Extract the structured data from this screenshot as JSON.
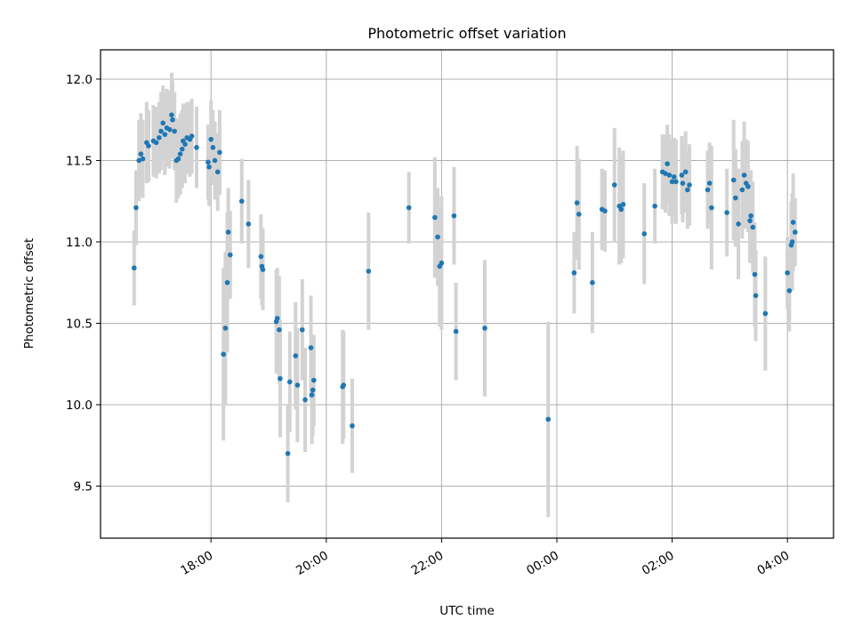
{
  "chart_data": {
    "type": "scatter",
    "title": "Photometric offset variation",
    "xlabel": "UTC time",
    "ylabel": "Photometric offset",
    "x_is_time": true,
    "xlim": [
      "16:05",
      "04:48"
    ],
    "ylim": [
      9.18,
      12.18
    ],
    "x_ticks": [
      "18:00",
      "20:00",
      "22:00",
      "00:00",
      "02:00",
      "04:00"
    ],
    "y_ticks": [
      9.5,
      10.0,
      10.5,
      11.0,
      11.5,
      12.0
    ],
    "grid": true,
    "point_color": "#1f77b4",
    "errorbar_color": "#d3d3d3",
    "series": [
      {
        "points": [
          {
            "t": "16:40",
            "y": 10.84,
            "err": 0.23
          },
          {
            "t": "16:42",
            "y": 11.21,
            "err": 0.23
          },
          {
            "t": "16:45",
            "y": 11.5,
            "err": 0.25
          },
          {
            "t": "16:47",
            "y": 11.54,
            "err": 0.25
          },
          {
            "t": "16:49",
            "y": 11.51,
            "err": 0.24
          },
          {
            "t": "16:53",
            "y": 11.61,
            "err": 0.25
          },
          {
            "t": "16:55",
            "y": 11.59,
            "err": 0.22
          },
          {
            "t": "17:00",
            "y": 11.62,
            "err": 0.22
          },
          {
            "t": "17:03",
            "y": 11.61,
            "err": 0.22
          },
          {
            "t": "17:06",
            "y": 11.64,
            "err": 0.22
          },
          {
            "t": "17:08",
            "y": 11.68,
            "err": 0.24
          },
          {
            "t": "17:10",
            "y": 11.73,
            "err": 0.23
          },
          {
            "t": "17:12",
            "y": 11.66,
            "err": 0.25
          },
          {
            "t": "17:14",
            "y": 11.7,
            "err": 0.24
          },
          {
            "t": "17:17",
            "y": 11.69,
            "err": 0.24
          },
          {
            "t": "17:19",
            "y": 11.78,
            "err": 0.26
          },
          {
            "t": "17:20",
            "y": 11.75,
            "err": 0.24
          },
          {
            "t": "17:22",
            "y": 11.68,
            "err": 0.24
          },
          {
            "t": "17:24",
            "y": 11.5,
            "err": 0.26
          },
          {
            "t": "17:26",
            "y": 11.51,
            "err": 0.24
          },
          {
            "t": "17:28",
            "y": 11.54,
            "err": 0.25
          },
          {
            "t": "17:30",
            "y": 11.57,
            "err": 0.24
          },
          {
            "t": "17:31",
            "y": 11.62,
            "err": 0.23
          },
          {
            "t": "17:33",
            "y": 11.6,
            "err": 0.24
          },
          {
            "t": "17:35",
            "y": 11.64,
            "err": 0.22
          },
          {
            "t": "17:38",
            "y": 11.63,
            "err": 0.23
          },
          {
            "t": "17:40",
            "y": 11.65,
            "err": 0.23
          },
          {
            "t": "17:45",
            "y": 11.58,
            "err": 0.25
          },
          {
            "t": "17:57",
            "y": 11.49,
            "err": 0.23
          },
          {
            "t": "17:58",
            "y": 11.46,
            "err": 0.24
          },
          {
            "t": "18:00",
            "y": 11.63,
            "err": 0.24
          },
          {
            "t": "18:02",
            "y": 11.58,
            "err": 0.23
          },
          {
            "t": "18:04",
            "y": 11.5,
            "err": 0.24
          },
          {
            "t": "18:07",
            "y": 11.43,
            "err": 0.24
          },
          {
            "t": "18:09",
            "y": 11.55,
            "err": 0.26
          },
          {
            "t": "18:13",
            "y": 10.31,
            "err": 0.53
          },
          {
            "t": "18:15",
            "y": 10.47,
            "err": 0.47
          },
          {
            "t": "18:17",
            "y": 10.75,
            "err": 0.43
          },
          {
            "t": "18:18",
            "y": 11.06,
            "err": 0.27
          },
          {
            "t": "18:20",
            "y": 10.92,
            "err": 0.27
          },
          {
            "t": "18:32",
            "y": 11.25,
            "err": 0.26
          },
          {
            "t": "18:39",
            "y": 11.11,
            "err": 0.27
          },
          {
            "t": "18:52",
            "y": 10.91,
            "err": 0.26
          },
          {
            "t": "18:53",
            "y": 10.85,
            "err": 0.24
          },
          {
            "t": "18:54",
            "y": 10.83,
            "err": 0.25
          },
          {
            "t": "19:08",
            "y": 10.51,
            "err": 0.32
          },
          {
            "t": "19:09",
            "y": 10.53,
            "err": 0.31
          },
          {
            "t": "19:11",
            "y": 10.46,
            "err": 0.33
          },
          {
            "t": "19:12",
            "y": 10.16,
            "err": 0.36
          },
          {
            "t": "19:20",
            "y": 9.7,
            "err": 0.3
          },
          {
            "t": "19:22",
            "y": 10.14,
            "err": 0.31
          },
          {
            "t": "19:28",
            "y": 10.3,
            "err": 0.33
          },
          {
            "t": "19:30",
            "y": 10.12,
            "err": 0.35
          },
          {
            "t": "19:35",
            "y": 10.46,
            "err": 0.31
          },
          {
            "t": "19:38",
            "y": 10.03,
            "err": 0.32
          },
          {
            "t": "19:44",
            "y": 10.35,
            "err": 0.32
          },
          {
            "t": "19:45",
            "y": 10.06,
            "err": 0.3
          },
          {
            "t": "19:46",
            "y": 10.09,
            "err": 0.28
          },
          {
            "t": "19:47",
            "y": 10.15,
            "err": 0.28
          },
          {
            "t": "20:17",
            "y": 10.11,
            "err": 0.35
          },
          {
            "t": "20:18",
            "y": 10.12,
            "err": 0.33
          },
          {
            "t": "20:27",
            "y": 9.87,
            "err": 0.29
          },
          {
            "t": "20:44",
            "y": 10.82,
            "err": 0.36
          },
          {
            "t": "21:26",
            "y": 11.21,
            "err": 0.22
          },
          {
            "t": "21:53",
            "y": 11.15,
            "err": 0.37
          },
          {
            "t": "21:56",
            "y": 11.03,
            "err": 0.3
          },
          {
            "t": "21:58",
            "y": 10.85,
            "err": 0.37
          },
          {
            "t": "22:00",
            "y": 10.87,
            "err": 0.41
          },
          {
            "t": "22:13",
            "y": 11.16,
            "err": 0.3
          },
          {
            "t": "22:15",
            "y": 10.45,
            "err": 0.3
          },
          {
            "t": "22:45",
            "y": 10.47,
            "err": 0.42
          },
          {
            "t": "23:51",
            "y": 9.91,
            "err": 0.6
          },
          {
            "t": "00:18",
            "y": 10.81,
            "err": 0.25
          },
          {
            "t": "00:21",
            "y": 11.24,
            "err": 0.35
          },
          {
            "t": "00:23",
            "y": 11.17,
            "err": 0.34
          },
          {
            "t": "00:37",
            "y": 10.75,
            "err": 0.31
          },
          {
            "t": "00:47",
            "y": 11.2,
            "err": 0.25
          },
          {
            "t": "00:50",
            "y": 11.19,
            "err": 0.25
          },
          {
            "t": "01:00",
            "y": 11.35,
            "err": 0.35
          },
          {
            "t": "01:05",
            "y": 11.22,
            "err": 0.36
          },
          {
            "t": "01:07",
            "y": 11.2,
            "err": 0.33
          },
          {
            "t": "01:09",
            "y": 11.23,
            "err": 0.33
          },
          {
            "t": "01:31",
            "y": 11.05,
            "err": 0.31
          },
          {
            "t": "01:42",
            "y": 11.22,
            "err": 0.23
          },
          {
            "t": "01:50",
            "y": 11.43,
            "err": 0.23
          },
          {
            "t": "01:53",
            "y": 11.42,
            "err": 0.24
          },
          {
            "t": "01:55",
            "y": 11.48,
            "err": 0.24
          },
          {
            "t": "01:57",
            "y": 11.41,
            "err": 0.25
          },
          {
            "t": "02:00",
            "y": 11.37,
            "err": 0.26
          },
          {
            "t": "02:02",
            "y": 11.4,
            "err": 0.24
          },
          {
            "t": "02:04",
            "y": 11.37,
            "err": 0.26
          },
          {
            "t": "02:10",
            "y": 11.41,
            "err": 0.24
          },
          {
            "t": "02:11",
            "y": 11.36,
            "err": 0.24
          },
          {
            "t": "02:14",
            "y": 11.43,
            "err": 0.25
          },
          {
            "t": "02:16",
            "y": 11.32,
            "err": 0.24
          },
          {
            "t": "02:18",
            "y": 11.35,
            "err": 0.25
          },
          {
            "t": "02:37",
            "y": 11.32,
            "err": 0.24
          },
          {
            "t": "02:39",
            "y": 11.36,
            "err": 0.25
          },
          {
            "t": "02:41",
            "y": 11.21,
            "err": 0.38
          },
          {
            "t": "02:57",
            "y": 11.18,
            "err": 0.27
          },
          {
            "t": "03:04",
            "y": 11.38,
            "err": 0.37
          },
          {
            "t": "03:06",
            "y": 11.27,
            "err": 0.3
          },
          {
            "t": "03:09",
            "y": 11.11,
            "err": 0.34
          },
          {
            "t": "03:13",
            "y": 11.32,
            "err": 0.3
          },
          {
            "t": "03:15",
            "y": 11.41,
            "err": 0.33
          },
          {
            "t": "03:17",
            "y": 11.36,
            "err": 0.27
          },
          {
            "t": "03:19",
            "y": 11.34,
            "err": 0.28
          },
          {
            "t": "03:21",
            "y": 11.13,
            "err": 0.26
          },
          {
            "t": "03:22",
            "y": 11.16,
            "err": 0.28
          },
          {
            "t": "03:24",
            "y": 11.09,
            "err": 0.28
          },
          {
            "t": "03:26",
            "y": 10.8,
            "err": 0.32
          },
          {
            "t": "03:27",
            "y": 10.67,
            "err": 0.28
          },
          {
            "t": "03:37",
            "y": 10.56,
            "err": 0.35
          },
          {
            "t": "04:00",
            "y": 10.81,
            "err": 0.22
          },
          {
            "t": "04:02",
            "y": 10.7,
            "err": 0.25
          },
          {
            "t": "04:04",
            "y": 10.98,
            "err": 0.27
          },
          {
            "t": "04:05",
            "y": 11.0,
            "err": 0.3
          },
          {
            "t": "04:06",
            "y": 11.12,
            "err": 0.3
          },
          {
            "t": "04:08",
            "y": 11.06,
            "err": 0.21
          }
        ]
      }
    ]
  }
}
